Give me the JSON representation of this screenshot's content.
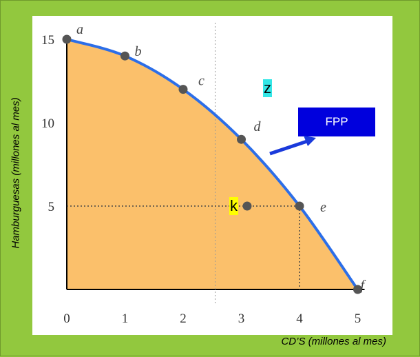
{
  "colors": {
    "frame_background": "#92c83e",
    "area_fill": "#fbc06b",
    "curve": "#2c6ee8",
    "point": "#555555",
    "fpp_box": "#0000dd",
    "arrow": "#1a3adb",
    "tag_z": "#33e6e6",
    "tag_k": "#ffff00"
  },
  "annotations": {
    "fpp_label": "FPP",
    "z_label": "z",
    "k_label": "k"
  },
  "chart_data": {
    "type": "line",
    "title": "",
    "xlabel": "CD’S (millones al mes)",
    "ylabel": "Hamburguesas (millones al mes)",
    "xlim": [
      0,
      5
    ],
    "ylim": [
      0,
      15
    ],
    "x_ticks": [
      "0",
      "1",
      "2",
      "3",
      "4",
      "5"
    ],
    "y_ticks": [
      "5",
      "10",
      "15"
    ],
    "grid": false,
    "series": [
      {
        "name": "FPP",
        "points": [
          {
            "label": "a",
            "x": 0,
            "y": 15
          },
          {
            "label": "b",
            "x": 1,
            "y": 14
          },
          {
            "label": "c",
            "x": 2,
            "y": 12
          },
          {
            "label": "d",
            "x": 3,
            "y": 9
          },
          {
            "label": "e",
            "x": 4,
            "y": 5
          },
          {
            "label": "f",
            "x": 5,
            "y": 0
          }
        ]
      }
    ],
    "extra_point": {
      "label": "k",
      "x": 3.1,
      "y": 5
    },
    "guide_x": 2.55
  }
}
